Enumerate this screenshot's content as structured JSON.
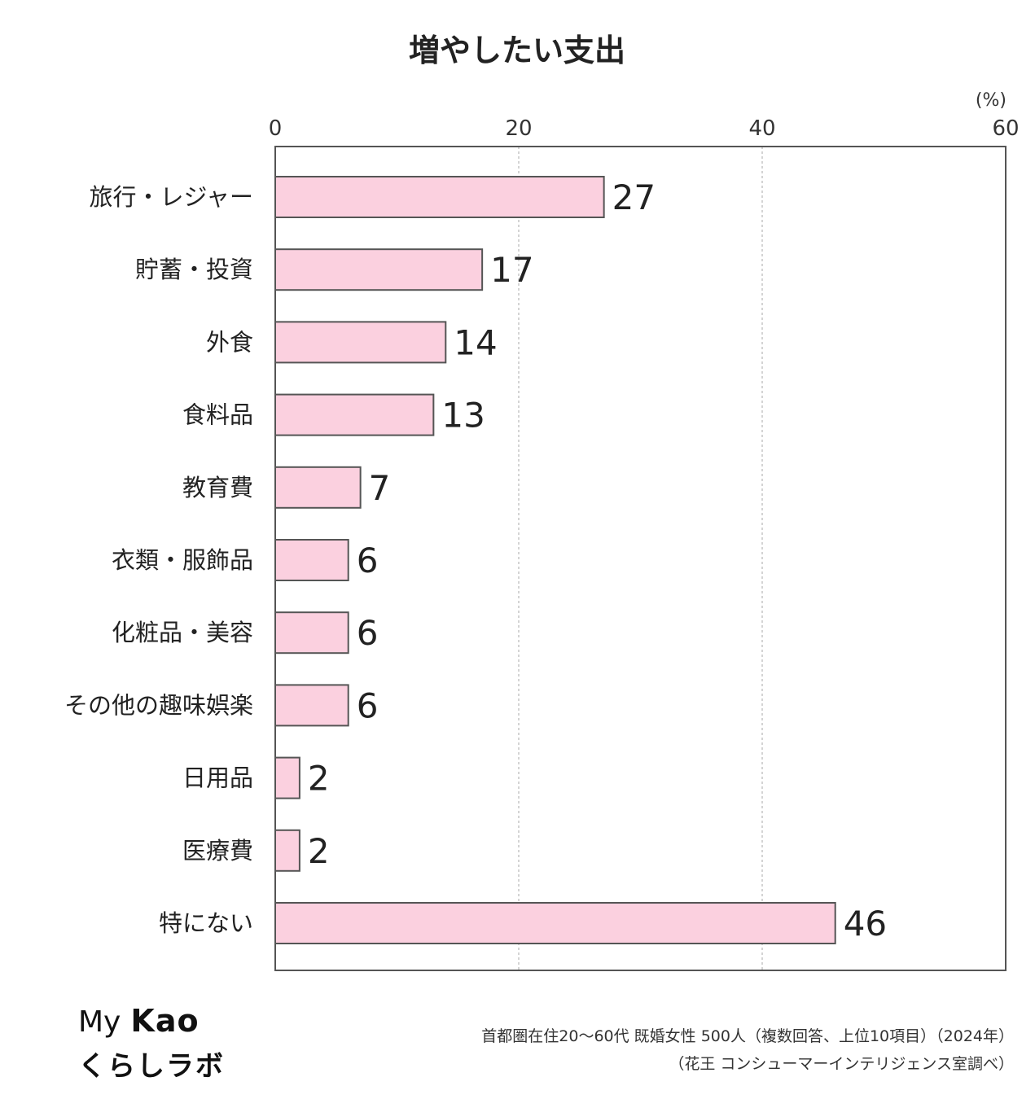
{
  "chart_data": {
    "type": "bar",
    "orientation": "horizontal",
    "title": "増やしたい支出",
    "unit": "(%)",
    "categories": [
      "旅行・レジャー",
      "貯蓄・投資",
      "外食",
      "食料品",
      "教育費",
      "衣類・服飾品",
      "化粧品・美容",
      "その他の趣味娯楽",
      "日用品",
      "医療費",
      "特にない"
    ],
    "values": [
      27,
      17,
      14,
      13,
      7,
      6,
      6,
      6,
      2,
      2,
      46
    ],
    "xlim": [
      0,
      60
    ],
    "ticks": [
      0,
      20,
      40,
      60
    ],
    "grid": true,
    "bar_color": "#fbd0df",
    "bar_stroke": "#555555"
  },
  "brand": {
    "my": "My",
    "kao": "Kao",
    "lab": "くらしラボ"
  },
  "source": {
    "line1": "首都圏在住20～60代 既婚女性 500人（複数回答、上位10項目）（2024年）",
    "line2": "（花王 コンシューマーインテリジェンス室調べ）"
  }
}
